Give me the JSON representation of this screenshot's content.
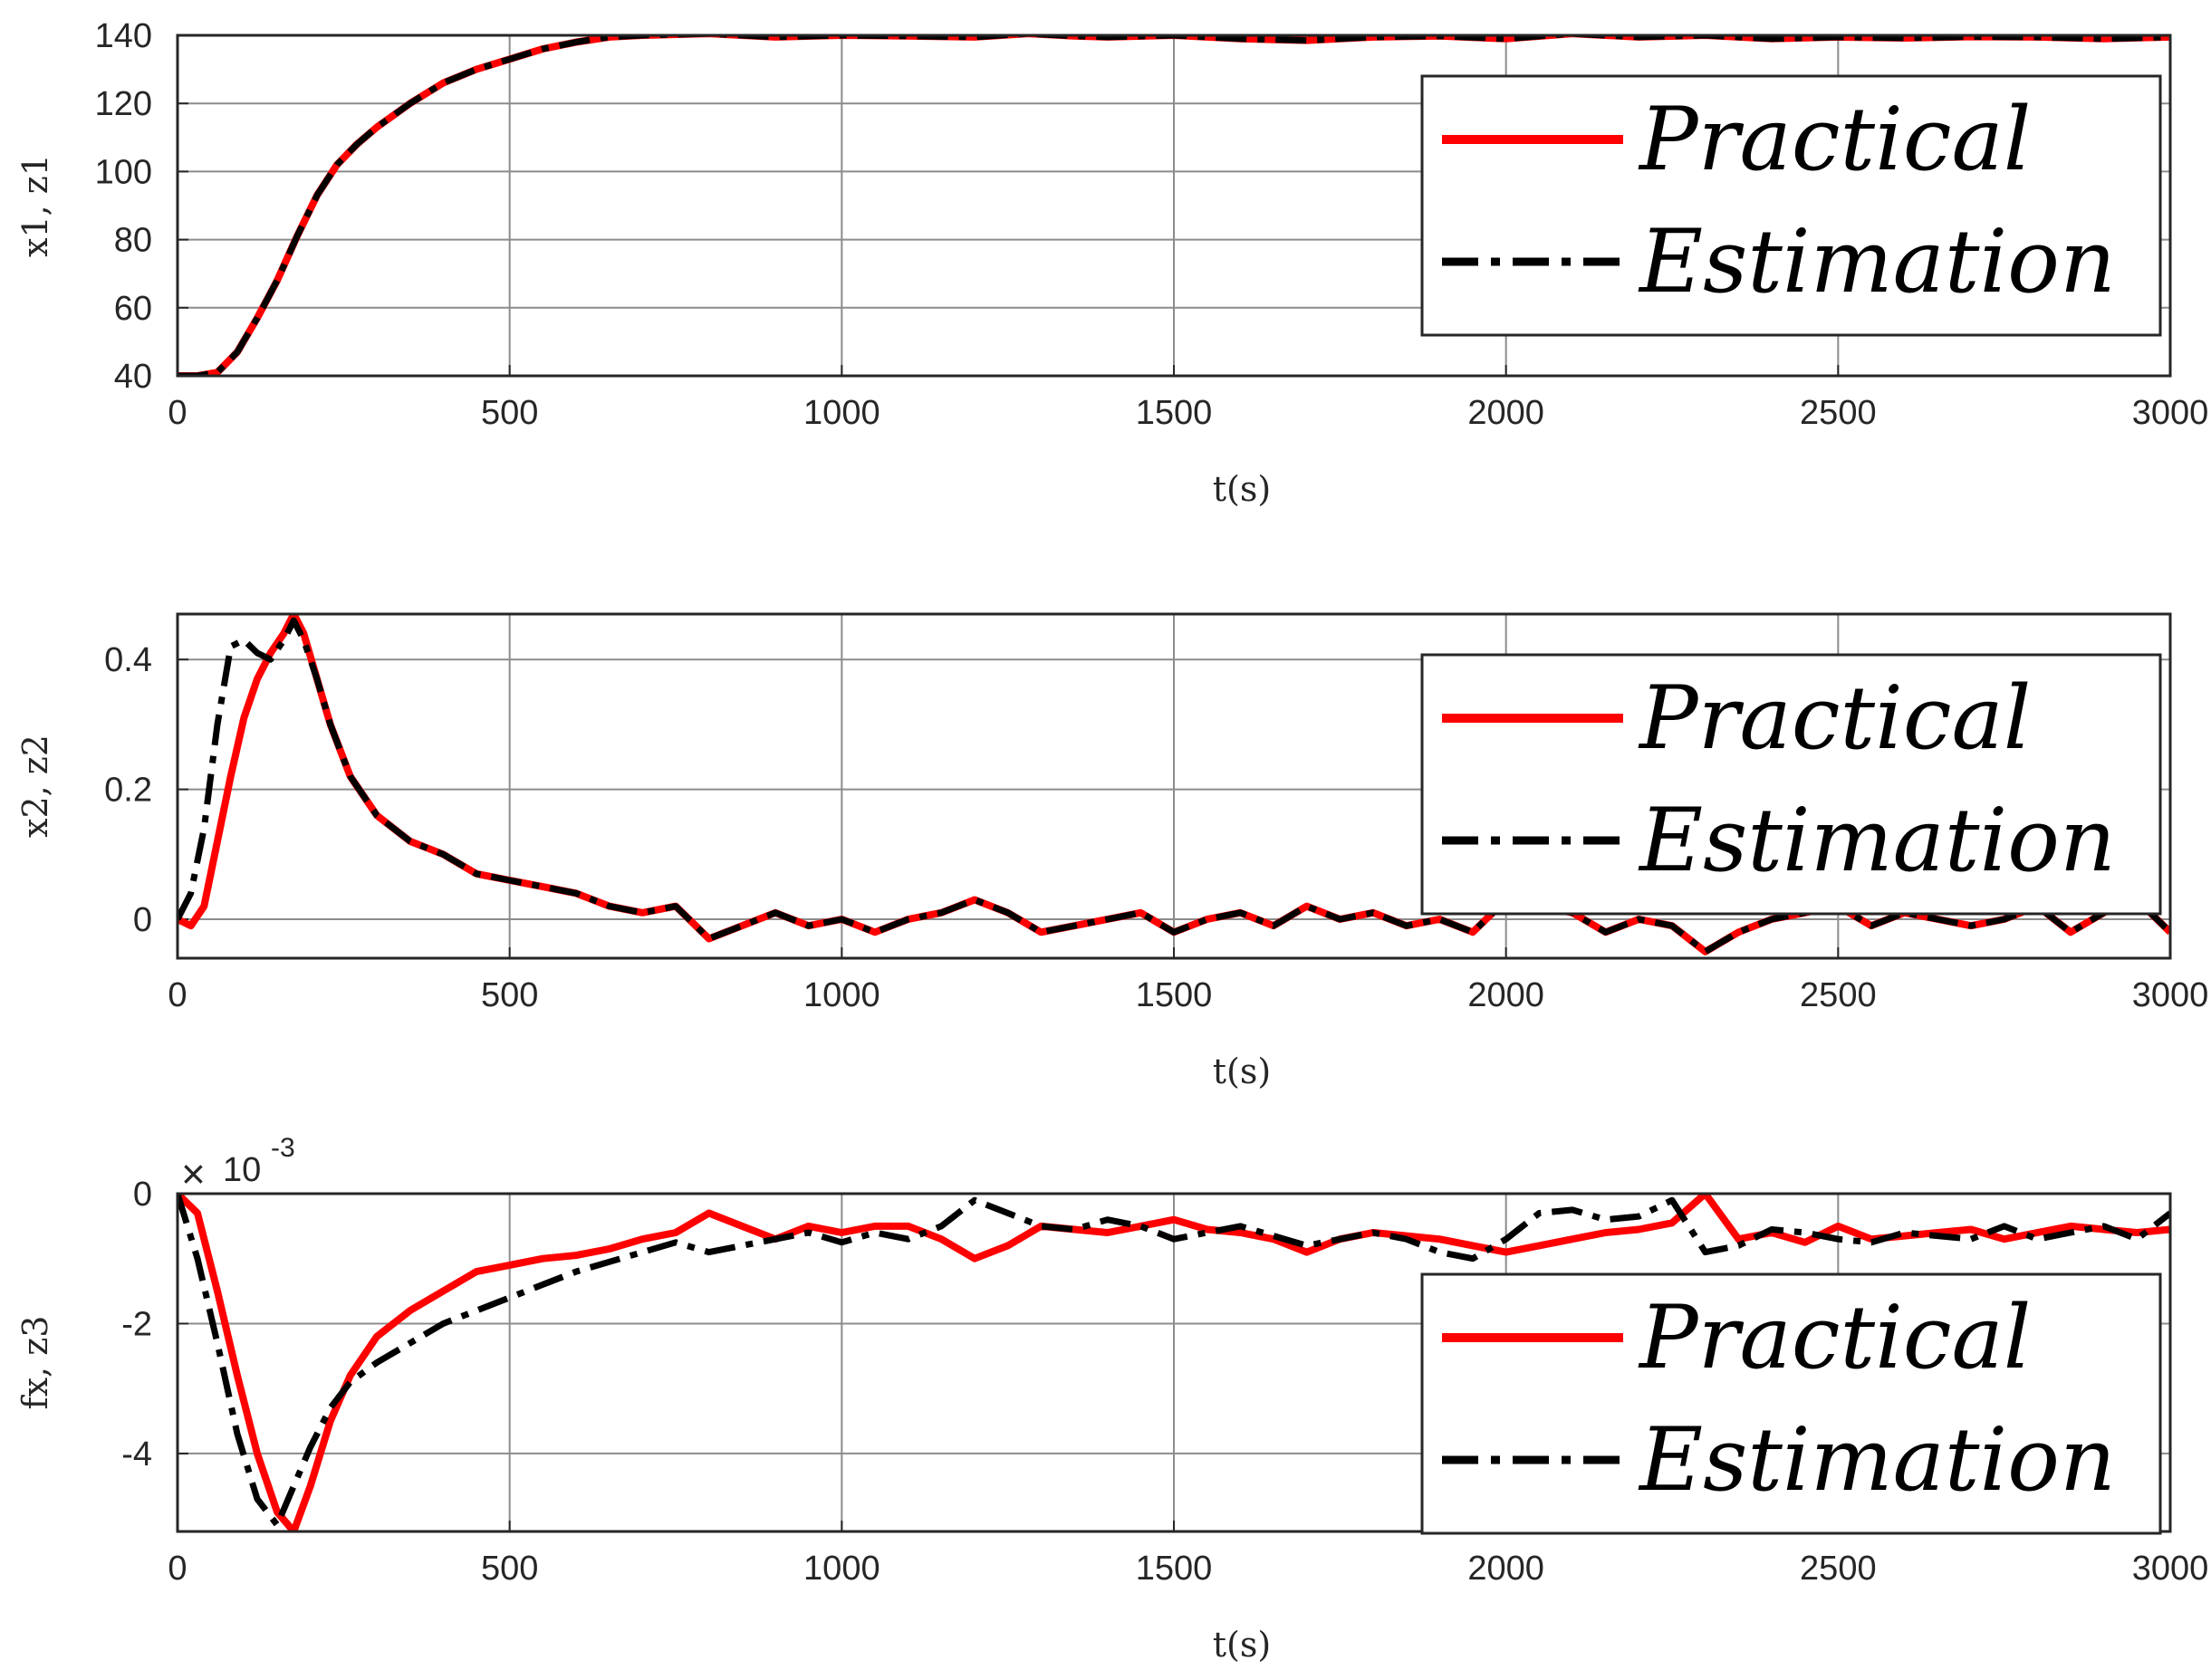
{
  "colors": {
    "practical": "#ff0000",
    "estimation": "#000000",
    "grid": "#8c8c8c",
    "axis": "#262626"
  },
  "chart_data": [
    {
      "type": "line",
      "id": "x1",
      "title": "",
      "xlabel": "t(s)",
      "ylabel": "x1,  z1",
      "xlim": [
        0,
        3000
      ],
      "ylim": [
        40,
        140
      ],
      "xticks": [
        0,
        500,
        1000,
        1500,
        2000,
        2500,
        3000
      ],
      "yticks": [
        40,
        60,
        80,
        100,
        120,
        140
      ],
      "xtick_labels": [
        "0",
        "500",
        "1000",
        "1500",
        "2000",
        "2500",
        "3000"
      ],
      "ytick_labels": [
        "40",
        "60",
        "80",
        "100",
        "120",
        "140"
      ],
      "exponent_label": null,
      "legend": {
        "position": "right",
        "entries": [
          "Practical",
          "Estimation"
        ]
      },
      "series": [
        {
          "name": "Practical",
          "x": [
            0,
            30,
            60,
            90,
            120,
            150,
            180,
            210,
            240,
            270,
            300,
            350,
            400,
            450,
            500,
            550,
            600,
            650,
            700,
            800,
            900,
            1000,
            1100,
            1200,
            1280,
            1350,
            1400,
            1500,
            1600,
            1700,
            1800,
            1900,
            2000,
            2100,
            2200,
            2300,
            2400,
            2500,
            2600,
            2700,
            2800,
            2900,
            3000
          ],
          "y": [
            40,
            40,
            41,
            47,
            57,
            68,
            81,
            93,
            102,
            108,
            113,
            120,
            126,
            130,
            133,
            136,
            138,
            139.5,
            140,
            140.5,
            139.5,
            140,
            139.8,
            139.5,
            140.5,
            139.8,
            139.5,
            140,
            139,
            138.5,
            139.5,
            139.8,
            139,
            140.5,
            139.5,
            140,
            139,
            139.5,
            139.2,
            139.6,
            139.5,
            139,
            139.5
          ]
        },
        {
          "name": "Estimation",
          "x": [
            0,
            30,
            60,
            90,
            120,
            150,
            180,
            210,
            240,
            270,
            300,
            350,
            400,
            450,
            500,
            550,
            600,
            650,
            700,
            800,
            900,
            1000,
            1100,
            1200,
            1280,
            1350,
            1400,
            1500,
            1600,
            1700,
            1800,
            1900,
            2000,
            2100,
            2200,
            2300,
            2400,
            2500,
            2600,
            2700,
            2800,
            2900,
            3000
          ],
          "y": [
            40,
            40,
            41,
            47,
            57,
            68,
            81,
            93,
            102,
            108,
            113,
            120,
            126,
            130,
            133,
            136,
            138,
            139.5,
            140,
            140.5,
            139.5,
            140,
            139.8,
            139.5,
            140.5,
            139.8,
            139.5,
            140,
            139,
            138.5,
            139.5,
            139.8,
            139,
            140.5,
            139.5,
            140,
            139,
            139.5,
            139.2,
            139.6,
            139.5,
            139,
            139.5
          ]
        }
      ]
    },
    {
      "type": "line",
      "id": "x2",
      "title": "",
      "xlabel": "t(s)",
      "ylabel": "x2,  z2",
      "xlim": [
        0,
        3000
      ],
      "ylim": [
        -0.06,
        0.47
      ],
      "xticks": [
        0,
        500,
        1000,
        1500,
        2000,
        2500,
        3000
      ],
      "yticks": [
        0,
        0.2,
        0.4
      ],
      "xtick_labels": [
        "0",
        "500",
        "1000",
        "1500",
        "2000",
        "2500",
        "3000"
      ],
      "ytick_labels": [
        "0",
        "0.2",
        "0.4"
      ],
      "exponent_label": null,
      "legend": {
        "position": "right",
        "entries": [
          "Practical",
          "Estimation"
        ]
      },
      "series": [
        {
          "name": "Practical",
          "x": [
            0,
            20,
            40,
            60,
            80,
            100,
            120,
            140,
            160,
            175,
            190,
            210,
            230,
            260,
            300,
            350,
            400,
            450,
            500,
            550,
            600,
            650,
            700,
            750,
            800,
            850,
            900,
            950,
            1000,
            1050,
            1100,
            1150,
            1200,
            1250,
            1300,
            1350,
            1400,
            1450,
            1500,
            1550,
            1600,
            1650,
            1700,
            1750,
            1800,
            1850,
            1900,
            1950,
            2000,
            2050,
            2100,
            2150,
            2200,
            2250,
            2300,
            2350,
            2400,
            2450,
            2500,
            2550,
            2600,
            2650,
            2700,
            2750,
            2800,
            2850,
            2900,
            2950,
            3000
          ],
          "y": [
            0,
            -0.01,
            0.02,
            0.12,
            0.22,
            0.31,
            0.37,
            0.41,
            0.44,
            0.47,
            0.44,
            0.37,
            0.3,
            0.22,
            0.16,
            0.12,
            0.1,
            0.07,
            0.06,
            0.05,
            0.04,
            0.02,
            0.01,
            0.02,
            -0.03,
            -0.01,
            0.01,
            -0.01,
            0.0,
            -0.02,
            0.0,
            0.01,
            0.03,
            0.01,
            -0.02,
            -0.01,
            0.0,
            0.01,
            -0.02,
            0.0,
            0.01,
            -0.01,
            0.02,
            0.0,
            0.01,
            -0.01,
            0.0,
            -0.02,
            0.03,
            0.02,
            0.01,
            -0.02,
            0.0,
            -0.01,
            -0.05,
            -0.02,
            0.0,
            0.01,
            0.02,
            -0.01,
            0.01,
            0.0,
            -0.01,
            0.0,
            0.02,
            -0.02,
            0.01,
            0.03,
            -0.02
          ]
        },
        {
          "name": "Estimation",
          "x": [
            0,
            20,
            40,
            60,
            80,
            100,
            120,
            140,
            160,
            175,
            190,
            210,
            230,
            260,
            300,
            350,
            400,
            450,
            500,
            550,
            600,
            650,
            700,
            750,
            800,
            850,
            900,
            950,
            1000,
            1050,
            1100,
            1150,
            1200,
            1250,
            1300,
            1350,
            1400,
            1450,
            1500,
            1550,
            1600,
            1650,
            1700,
            1750,
            1800,
            1850,
            1900,
            1950,
            2000,
            2050,
            2100,
            2150,
            2200,
            2250,
            2300,
            2350,
            2400,
            2450,
            2500,
            2550,
            2600,
            2650,
            2700,
            2750,
            2800,
            2850,
            2900,
            2950,
            3000
          ],
          "y": [
            0,
            0.04,
            0.14,
            0.3,
            0.42,
            0.43,
            0.41,
            0.4,
            0.43,
            0.46,
            0.43,
            0.37,
            0.3,
            0.22,
            0.16,
            0.12,
            0.1,
            0.07,
            0.06,
            0.05,
            0.04,
            0.02,
            0.01,
            0.02,
            -0.03,
            -0.01,
            0.01,
            -0.01,
            0.0,
            -0.02,
            0.0,
            0.01,
            0.03,
            0.01,
            -0.02,
            -0.01,
            0.0,
            0.01,
            -0.02,
            0.0,
            0.01,
            -0.01,
            0.02,
            0.0,
            0.01,
            -0.01,
            0.0,
            -0.02,
            0.03,
            0.02,
            0.01,
            -0.02,
            0.0,
            -0.01,
            -0.05,
            -0.02,
            0.0,
            0.01,
            0.02,
            -0.01,
            0.01,
            0.0,
            -0.01,
            0.0,
            0.02,
            -0.02,
            0.01,
            0.03,
            -0.02
          ]
        }
      ]
    },
    {
      "type": "line",
      "id": "fx",
      "title": "",
      "xlabel": "t(s)",
      "ylabel": "fx,  z3",
      "xlim": [
        0,
        3000
      ],
      "ylim": [
        -5.2,
        0
      ],
      "xticks": [
        0,
        500,
        1000,
        1500,
        2000,
        2500,
        3000
      ],
      "yticks": [
        -4,
        -2,
        0
      ],
      "xtick_labels": [
        "0",
        "500",
        "1000",
        "1500",
        "2000",
        "2500",
        "3000"
      ],
      "ytick_labels": [
        "-4",
        "-2",
        "0"
      ],
      "exponent_label": {
        "times": "×",
        "base": "10",
        "power": "-3"
      },
      "legend": {
        "position": "right",
        "entries": [
          "Practical",
          "Estimation"
        ]
      },
      "series": [
        {
          "name": "Practical",
          "x": [
            0,
            30,
            60,
            90,
            120,
            150,
            175,
            200,
            230,
            260,
            300,
            350,
            400,
            450,
            500,
            550,
            600,
            650,
            700,
            750,
            800,
            850,
            900,
            950,
            1000,
            1050,
            1100,
            1150,
            1200,
            1250,
            1300,
            1350,
            1400,
            1450,
            1500,
            1550,
            1600,
            1650,
            1700,
            1750,
            1800,
            1850,
            1900,
            1950,
            2000,
            2050,
            2100,
            2150,
            2200,
            2250,
            2300,
            2350,
            2400,
            2450,
            2500,
            2550,
            2600,
            2650,
            2700,
            2750,
            2800,
            2850,
            2900,
            2950,
            3000
          ],
          "y": [
            0,
            -0.3,
            -1.5,
            -2.8,
            -4.0,
            -4.9,
            -5.2,
            -4.5,
            -3.5,
            -2.8,
            -2.2,
            -1.8,
            -1.5,
            -1.2,
            -1.1,
            -1.0,
            -0.95,
            -0.85,
            -0.7,
            -0.6,
            -0.3,
            -0.5,
            -0.7,
            -0.5,
            -0.6,
            -0.5,
            -0.5,
            -0.7,
            -1.0,
            -0.8,
            -0.5,
            -0.55,
            -0.6,
            -0.5,
            -0.4,
            -0.55,
            -0.6,
            -0.7,
            -0.9,
            -0.7,
            -0.6,
            -0.65,
            -0.7,
            -0.8,
            -0.9,
            -0.8,
            -0.7,
            -0.6,
            -0.55,
            -0.45,
            0.0,
            -0.7,
            -0.6,
            -0.75,
            -0.5,
            -0.7,
            -0.65,
            -0.6,
            -0.55,
            -0.7,
            -0.6,
            -0.5,
            -0.55,
            -0.6,
            -0.55
          ]
        },
        {
          "name": "Estimation",
          "x": [
            0,
            30,
            60,
            90,
            120,
            150,
            175,
            200,
            230,
            260,
            300,
            350,
            400,
            450,
            500,
            550,
            600,
            650,
            700,
            750,
            800,
            850,
            900,
            950,
            1000,
            1050,
            1100,
            1150,
            1200,
            1250,
            1300,
            1350,
            1400,
            1450,
            1500,
            1550,
            1600,
            1650,
            1700,
            1750,
            1800,
            1850,
            1900,
            1950,
            2000,
            2050,
            2100,
            2150,
            2200,
            2250,
            2300,
            2350,
            2400,
            2450,
            2500,
            2550,
            2600,
            2650,
            2700,
            2750,
            2800,
            2850,
            2900,
            2950,
            3000
          ],
          "y": [
            0,
            -1.0,
            -2.3,
            -3.7,
            -4.7,
            -5.1,
            -4.5,
            -3.9,
            -3.3,
            -2.9,
            -2.6,
            -2.3,
            -2.0,
            -1.8,
            -1.6,
            -1.4,
            -1.2,
            -1.05,
            -0.9,
            -0.75,
            -0.9,
            -0.8,
            -0.7,
            -0.6,
            -0.75,
            -0.6,
            -0.7,
            -0.5,
            -0.1,
            -0.3,
            -0.5,
            -0.55,
            -0.4,
            -0.5,
            -0.7,
            -0.6,
            -0.5,
            -0.65,
            -0.8,
            -0.7,
            -0.6,
            -0.7,
            -0.9,
            -1.0,
            -0.7,
            -0.3,
            -0.25,
            -0.4,
            -0.35,
            -0.1,
            -0.9,
            -0.8,
            -0.55,
            -0.6,
            -0.7,
            -0.75,
            -0.6,
            -0.65,
            -0.7,
            -0.5,
            -0.7,
            -0.6,
            -0.5,
            -0.7,
            -0.3
          ]
        }
      ]
    }
  ]
}
